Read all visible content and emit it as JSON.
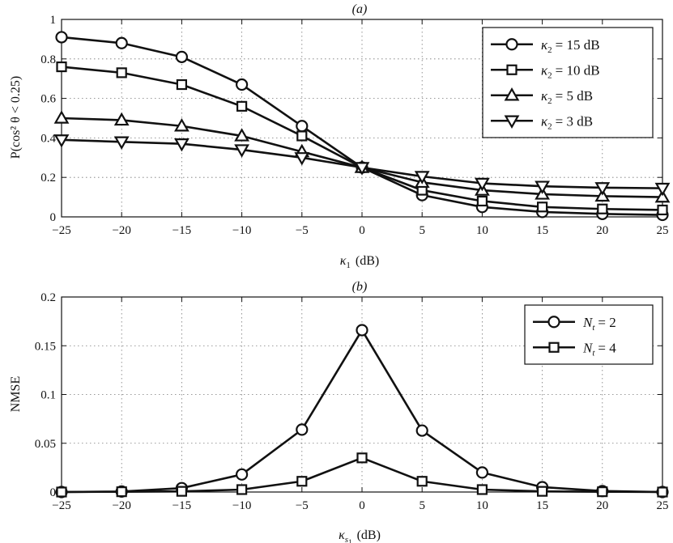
{
  "chart_data": [
    {
      "type": "line",
      "title": "(a)",
      "xlabel_symbol": "κ",
      "xlabel_sub": "1",
      "xlabel_unit": "(dB)",
      "ylabel": "P(cos² θ < 0.25)",
      "xlim": [
        -25,
        25
      ],
      "ylim": [
        0,
        1
      ],
      "xticks": [
        -25,
        -20,
        -15,
        -10,
        -5,
        0,
        5,
        10,
        15,
        20,
        25
      ],
      "xtick_labels": [
        "−25",
        "−20",
        "−15",
        "−10",
        "−5",
        "0",
        "5",
        "10",
        "15",
        "20",
        "25"
      ],
      "yticks": [
        0,
        0.2,
        0.4,
        0.6,
        0.8,
        1
      ],
      "ytick_labels": [
        "0",
        "0.2",
        "0.4",
        "0.6",
        "0.8",
        "1"
      ],
      "grid": true,
      "legend_position": "top-right",
      "x": [
        -25,
        -20,
        -15,
        -10,
        -5,
        0,
        5,
        10,
        15,
        20,
        25
      ],
      "series": [
        {
          "name": "κ2 = 15 dB",
          "legend_symbol": "κ",
          "legend_sub": "2",
          "legend_value": "= 15  dB",
          "marker": "circle",
          "values": [
            0.91,
            0.88,
            0.81,
            0.67,
            0.46,
            0.25,
            0.11,
            0.05,
            0.025,
            0.015,
            0.01
          ]
        },
        {
          "name": "κ2 = 10 dB",
          "legend_symbol": "κ",
          "legend_sub": "2",
          "legend_value": "= 10  dB",
          "marker": "square",
          "values": [
            0.76,
            0.73,
            0.67,
            0.56,
            0.41,
            0.25,
            0.135,
            0.08,
            0.05,
            0.04,
            0.035
          ]
        },
        {
          "name": "κ2 = 5 dB",
          "legend_symbol": "κ",
          "legend_sub": "2",
          "legend_value": "=  5  dB",
          "marker": "triangle-up",
          "values": [
            0.5,
            0.49,
            0.46,
            0.41,
            0.33,
            0.25,
            0.175,
            0.135,
            0.115,
            0.105,
            0.1
          ]
        },
        {
          "name": "κ2 = 3 dB",
          "legend_symbol": "κ",
          "legend_sub": "2",
          "legend_value": "=  3  dB",
          "marker": "triangle-down",
          "values": [
            0.39,
            0.38,
            0.37,
            0.34,
            0.3,
            0.25,
            0.205,
            0.17,
            0.155,
            0.148,
            0.145
          ]
        }
      ]
    },
    {
      "type": "line",
      "title": "(b)",
      "xlabel_symbol": "κ",
      "xlabel_sub": "s",
      "xlabel_subsub": "1",
      "xlabel_unit": "(dB)",
      "ylabel": "NMSE",
      "xlim": [
        -25,
        25
      ],
      "ylim": [
        0,
        0.2
      ],
      "xticks": [
        -25,
        -20,
        -15,
        -10,
        -5,
        0,
        5,
        10,
        15,
        20,
        25
      ],
      "xtick_labels": [
        "−25",
        "−20",
        "−15",
        "−10",
        "−5",
        "0",
        "5",
        "10",
        "15",
        "20",
        "25"
      ],
      "yticks": [
        0,
        0.05,
        0.1,
        0.15,
        0.2
      ],
      "ytick_labels": [
        "0",
        "0.05",
        "0.1",
        "0.15",
        "0.2"
      ],
      "grid": true,
      "legend_position": "top-right",
      "x": [
        -25,
        -20,
        -15,
        -10,
        -5,
        0,
        5,
        10,
        15,
        20,
        25
      ],
      "series": [
        {
          "name": "Nt = 2",
          "legend_symbol": "N",
          "legend_sub": "t",
          "legend_value": "= 2",
          "marker": "circle",
          "values": [
            0,
            0.0005,
            0.004,
            0.018,
            0.064,
            0.166,
            0.063,
            0.02,
            0.005,
            0.001,
            0
          ]
        },
        {
          "name": "Nt = 4",
          "legend_symbol": "N",
          "legend_sub": "t",
          "legend_value": "= 4",
          "marker": "square",
          "values": [
            0,
            0.0003,
            0.0007,
            0.0025,
            0.011,
            0.035,
            0.011,
            0.0025,
            0.0007,
            0.0003,
            0
          ]
        }
      ]
    }
  ]
}
